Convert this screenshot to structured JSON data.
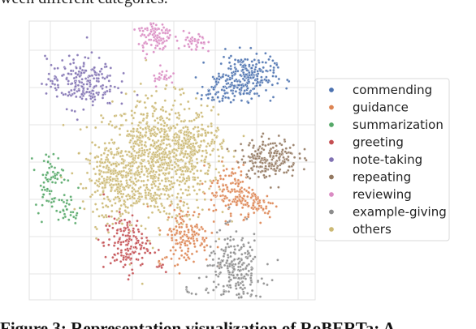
{
  "top_text": "ween different categories.",
  "caption": "Figure 3: Representation visualization of RoBERTa: A",
  "chart_data": {
    "type": "scatter",
    "title": "",
    "xlabel": "",
    "ylabel": "",
    "xlim": [
      0,
      1
    ],
    "ylim": [
      0,
      1
    ],
    "grid": true,
    "legend_position": "right",
    "series": [
      {
        "name": "commending",
        "color": "#4c72b0",
        "clusters": [
          {
            "x": 0.76,
            "y": 0.8,
            "sx": 0.05,
            "sy": 0.04,
            "n": 230
          },
          {
            "x": 0.66,
            "y": 0.75,
            "sx": 0.03,
            "sy": 0.03,
            "n": 60
          }
        ]
      },
      {
        "name": "guidance",
        "color": "#dd8452",
        "clusters": [
          {
            "x": 0.71,
            "y": 0.39,
            "sx": 0.04,
            "sy": 0.05,
            "n": 130
          },
          {
            "x": 0.8,
            "y": 0.34,
            "sx": 0.03,
            "sy": 0.025,
            "n": 60
          },
          {
            "x": 0.55,
            "y": 0.23,
            "sx": 0.04,
            "sy": 0.05,
            "n": 140
          },
          {
            "x": 0.46,
            "y": 0.13,
            "sx": 0.01,
            "sy": 0.01,
            "n": 6
          }
        ]
      },
      {
        "name": "summarization",
        "color": "#55a868",
        "clusters": [
          {
            "x": 0.07,
            "y": 0.43,
            "sx": 0.025,
            "sy": 0.05,
            "n": 70
          },
          {
            "x": 0.14,
            "y": 0.32,
            "sx": 0.02,
            "sy": 0.03,
            "n": 30
          }
        ]
      },
      {
        "name": "greeting",
        "color": "#c44e52",
        "clusters": [
          {
            "x": 0.34,
            "y": 0.2,
            "sx": 0.04,
            "sy": 0.05,
            "n": 150
          },
          {
            "x": 0.46,
            "y": 0.12,
            "sx": 0.008,
            "sy": 0.008,
            "n": 8
          }
        ]
      },
      {
        "name": "note-taking",
        "color": "#8172b3",
        "clusters": [
          {
            "x": 0.18,
            "y": 0.78,
            "sx": 0.06,
            "sy": 0.045,
            "n": 220
          }
        ]
      },
      {
        "name": "repeating",
        "color": "#937860",
        "clusters": [
          {
            "x": 0.84,
            "y": 0.51,
            "sx": 0.05,
            "sy": 0.035,
            "n": 200
          }
        ]
      },
      {
        "name": "reviewing",
        "color": "#da8bc3",
        "clusters": [
          {
            "x": 0.44,
            "y": 0.95,
            "sx": 0.03,
            "sy": 0.035,
            "n": 110
          },
          {
            "x": 0.58,
            "y": 0.92,
            "sx": 0.02,
            "sy": 0.02,
            "n": 40
          },
          {
            "x": 0.47,
            "y": 0.8,
            "sx": 0.02,
            "sy": 0.015,
            "n": 25
          }
        ]
      },
      {
        "name": "example-giving",
        "color": "#8c8c8c",
        "clusters": [
          {
            "x": 0.72,
            "y": 0.1,
            "sx": 0.05,
            "sy": 0.07,
            "n": 260
          },
          {
            "x": 0.55,
            "y": 0.03,
            "sx": 0.008,
            "sy": 0.008,
            "n": 6
          }
        ]
      },
      {
        "name": "others",
        "color": "#ccb974",
        "clusters": [
          {
            "x": 0.45,
            "y": 0.5,
            "sx": 0.095,
            "sy": 0.11,
            "n": 900
          },
          {
            "x": 0.3,
            "y": 0.43,
            "sx": 0.05,
            "sy": 0.06,
            "n": 250
          },
          {
            "x": 0.58,
            "y": 0.55,
            "sx": 0.05,
            "sy": 0.05,
            "n": 150
          }
        ]
      }
    ]
  }
}
